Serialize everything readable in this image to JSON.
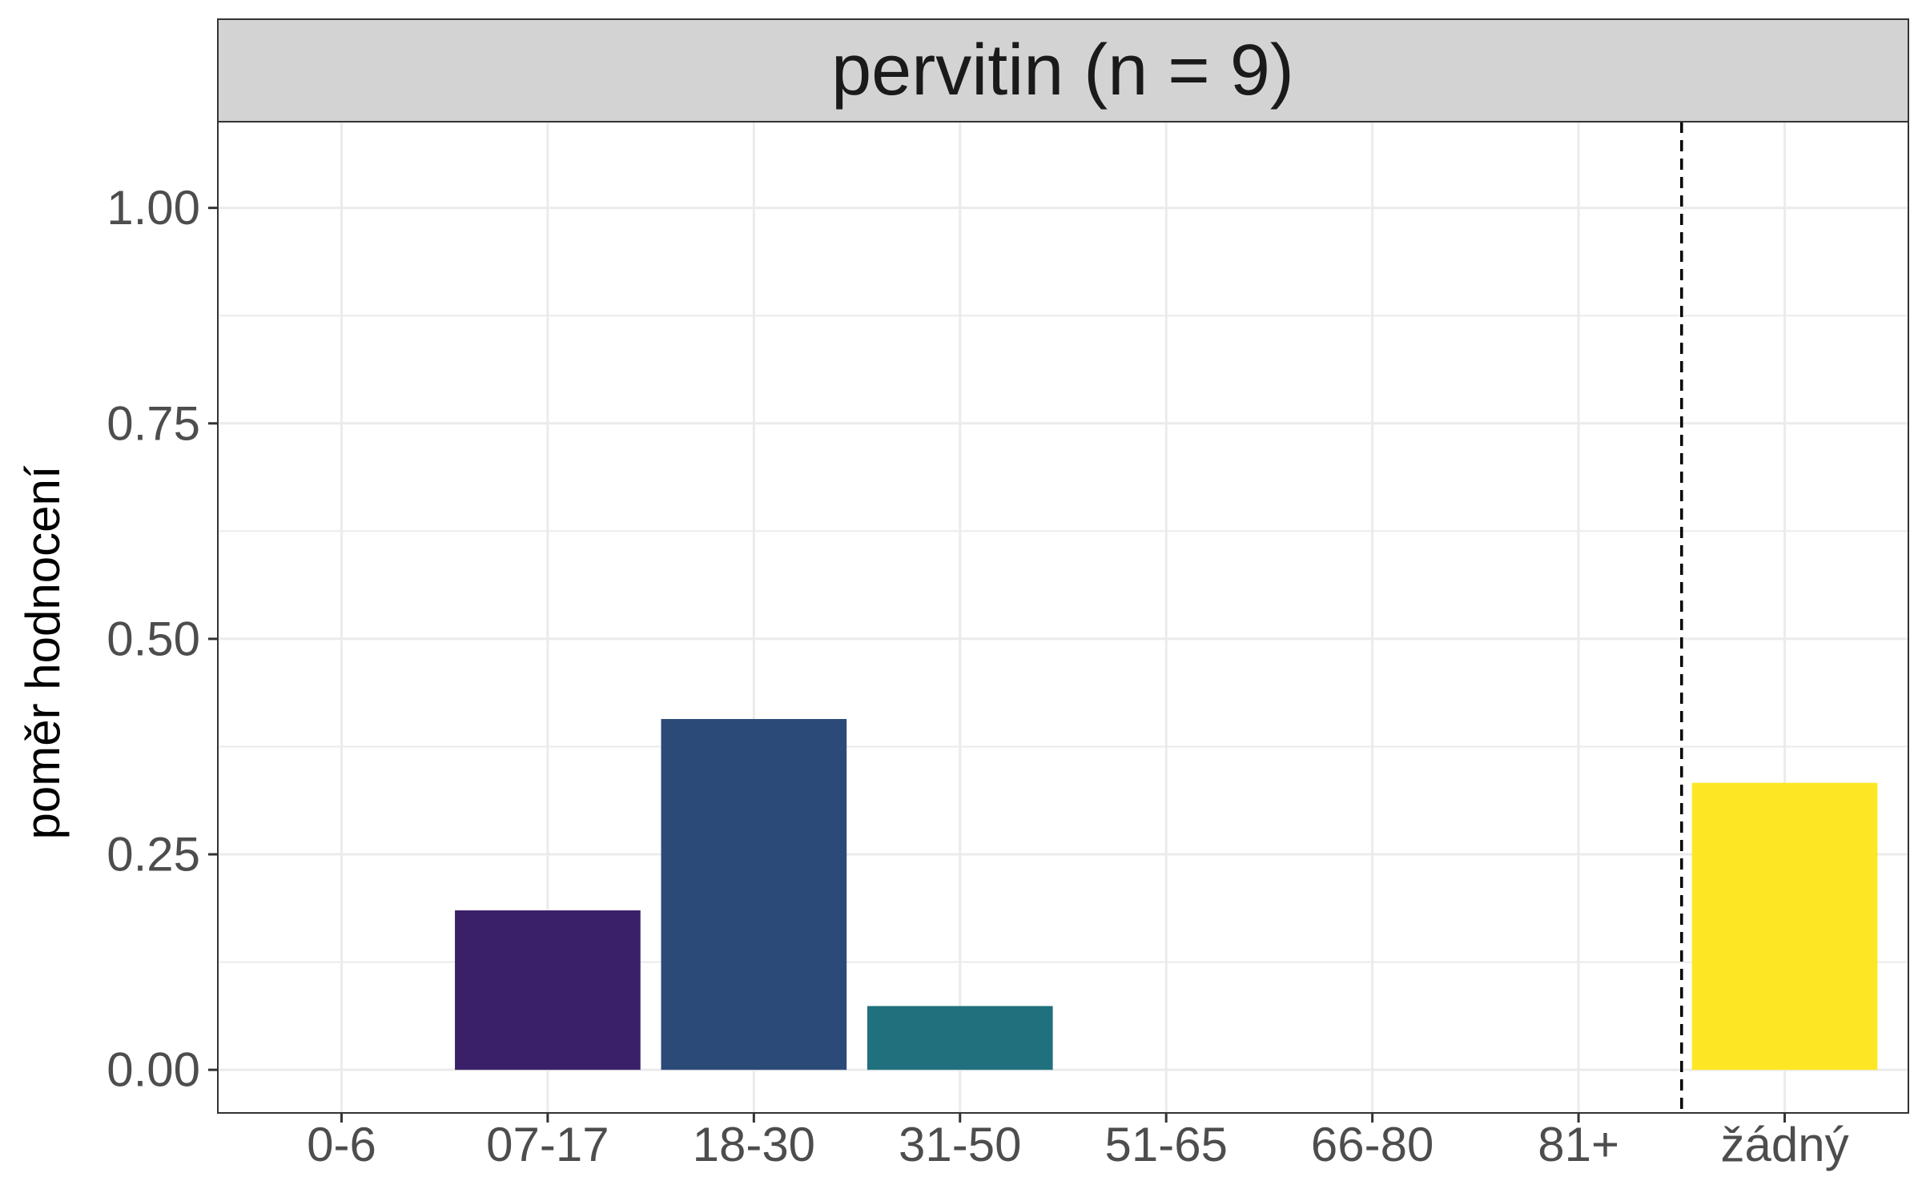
{
  "chart_data": {
    "type": "bar",
    "title": "pervitin (n = 9)",
    "xlabel": "",
    "ylabel": "poměr hodnocení",
    "categories": [
      "0-6",
      "07-17",
      "18-30",
      "31-50",
      "51-65",
      "66-80",
      "81+",
      "žádný"
    ],
    "values": [
      0,
      0.185,
      0.407,
      0.074,
      0,
      0,
      0,
      0.333
    ],
    "colors": [
      "#440154",
      "#3A2069",
      "#2C4A78",
      "#21707D",
      "#2A9A87",
      "#52C568",
      "#A8DB34",
      "#FDE725"
    ],
    "ylim": [
      -0.05,
      1.1
    ],
    "yticks": [
      "0.00",
      "0.25",
      "0.50",
      "0.75",
      "1.00"
    ],
    "ytick_values": [
      0,
      0.25,
      0.5,
      0.75,
      1.0
    ],
    "grid": true,
    "separator_line": {
      "style": "dashed",
      "between": [
        "81+",
        "žádný"
      ]
    },
    "strip_color": "#D3D3D3"
  }
}
